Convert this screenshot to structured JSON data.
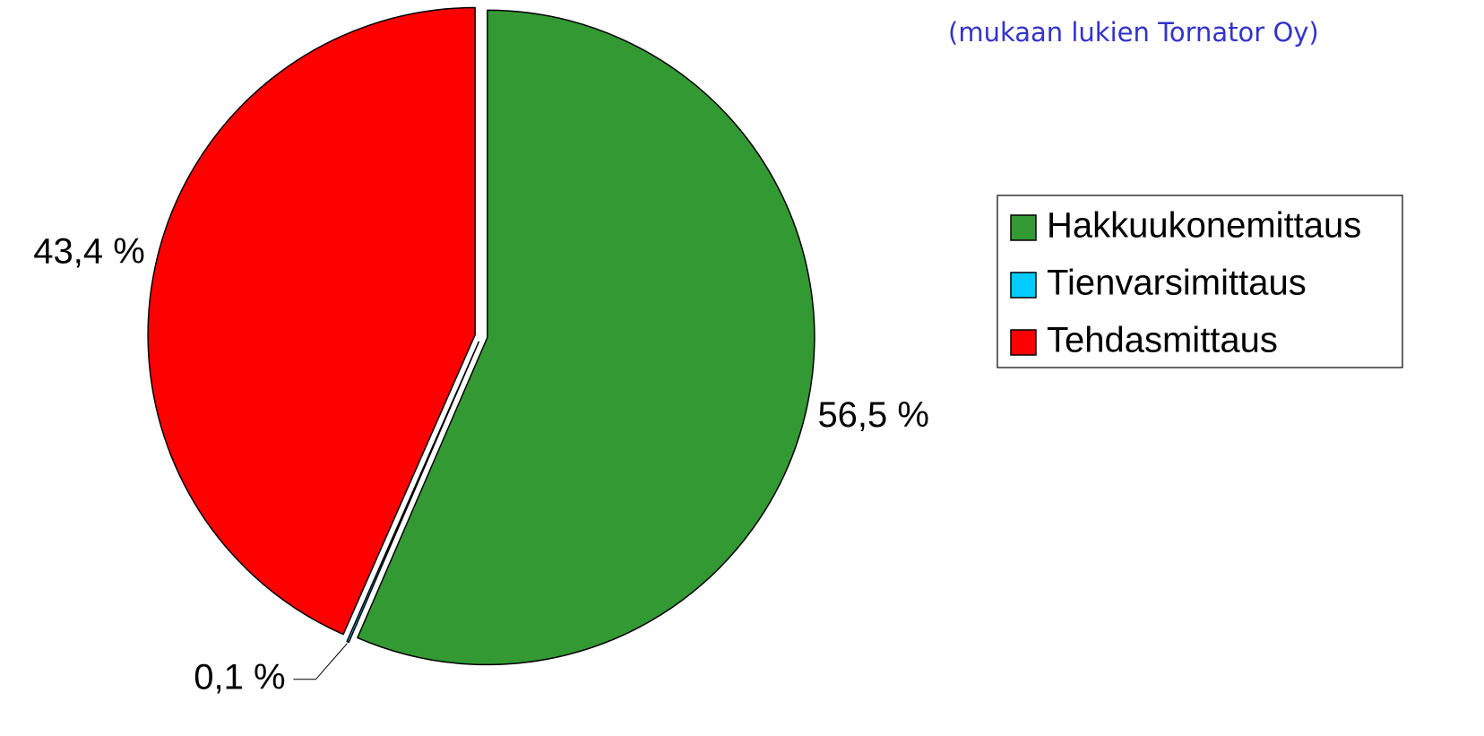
{
  "chart_data": {
    "type": "pie",
    "subtitle": "(mukaan lukien Tornator Oy)",
    "categories": [
      "Hakkuukonemittaus",
      "Tienvarsimittaus",
      "Tehdasmittaus"
    ],
    "values": [
      56.5,
      0.1,
      43.4
    ],
    "value_labels": [
      "56,5 %",
      "0,1 %",
      "43,4 %"
    ],
    "colors": [
      "#339933",
      "#00ccff",
      "#ff0000"
    ],
    "legend": "right"
  }
}
